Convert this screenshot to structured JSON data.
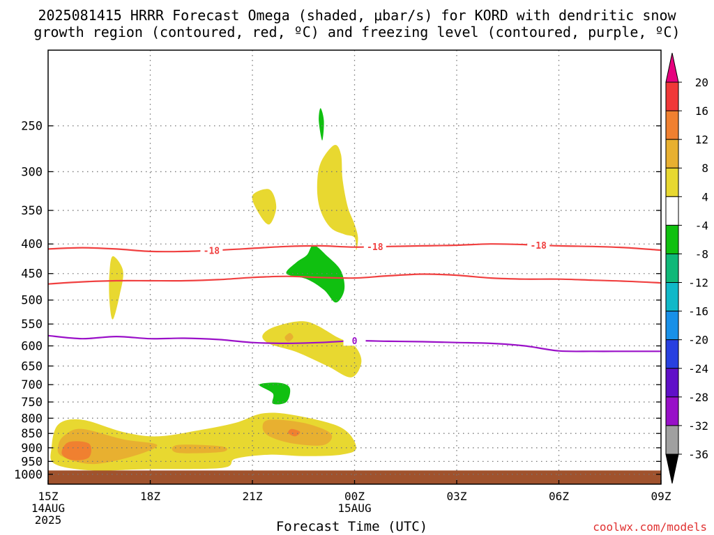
{
  "title": {
    "line1": "2025081415 HRRR Forecast Omega (shaded, μbar/s) for KORD with dendritic snow",
    "line2": "growth region (contoured, red, ºC) and freezing level (contoured, purple, ºC)"
  },
  "credit": "coolwx.com/models",
  "chart_data": {
    "type": "time-height cross section",
    "title": "2025081415 HRRR Forecast Omega (shaded, μbar/s) for KORD with dendritic snow growth region (contoured, red, ºC) and freezing level (contoured, purple, ºC)",
    "xlabel": "Forecast Time (UTC)",
    "ylabel": "",
    "x_ticks": [
      {
        "hour": 0,
        "label": "15Z",
        "sub1": "14AUG",
        "sub2": "2025"
      },
      {
        "hour": 3,
        "label": "18Z",
        "sub1": "",
        "sub2": ""
      },
      {
        "hour": 6,
        "label": "21Z",
        "sub1": "",
        "sub2": ""
      },
      {
        "hour": 9,
        "label": "00Z",
        "sub1": "15AUG",
        "sub2": ""
      },
      {
        "hour": 12,
        "label": "03Z",
        "sub1": "",
        "sub2": ""
      },
      {
        "hour": 15,
        "label": "06Z",
        "sub1": "",
        "sub2": ""
      },
      {
        "hour": 18,
        "label": "09Z",
        "sub1": "",
        "sub2": ""
      }
    ],
    "xlim_hours": [
      0,
      18
    ],
    "y_axis_scale": "log-pressure, inverted",
    "ylim_hPa": [
      1040,
      185
    ],
    "y_ticks": [
      250,
      300,
      350,
      400,
      450,
      500,
      550,
      600,
      650,
      700,
      750,
      800,
      850,
      900,
      950,
      1000
    ],
    "grid": true,
    "surface_pressure_hPa": 985,
    "colorbar": {
      "levels": [
        20,
        16,
        12,
        8,
        4,
        -4,
        -8,
        -12,
        -16,
        -20,
        -24,
        -28,
        -32,
        -36
      ],
      "colors": [
        "#e6007e",
        "#f03838",
        "#f08030",
        "#e8b030",
        "#e8d830",
        "#ffffff",
        "#10c010",
        "#10b878",
        "#10b8c8",
        "#1890e8",
        "#2840e0",
        "#6010c8",
        "#9810c8",
        "#a0a0a0",
        "#000000"
      ]
    },
    "contours": [
      {
        "name": "-18",
        "color": "#f04040",
        "label": "-18",
        "points": [
          [
            0,
            408
          ],
          [
            1,
            406
          ],
          [
            2,
            408
          ],
          [
            3,
            412
          ],
          [
            4,
            412
          ],
          [
            5,
            410
          ],
          [
            6,
            407
          ],
          [
            7,
            404
          ],
          [
            8,
            403
          ],
          [
            9,
            405
          ],
          [
            10,
            404
          ],
          [
            11,
            403
          ],
          [
            12,
            402
          ],
          [
            13,
            400
          ],
          [
            14,
            401
          ],
          [
            15,
            403
          ],
          [
            16,
            404
          ],
          [
            17,
            406
          ],
          [
            18,
            410
          ]
        ]
      },
      {
        "name": "-18",
        "color": "#f04040",
        "label": "",
        "points": [
          [
            0,
            469
          ],
          [
            1,
            465
          ],
          [
            2,
            463
          ],
          [
            3,
            463
          ],
          [
            4,
            463
          ],
          [
            5,
            461
          ],
          [
            6,
            457
          ],
          [
            7,
            455
          ],
          [
            8,
            457
          ],
          [
            9,
            458
          ],
          [
            10,
            454
          ],
          [
            11,
            451
          ],
          [
            12,
            453
          ],
          [
            13,
            458
          ],
          [
            14,
            460
          ],
          [
            15,
            460
          ],
          [
            16,
            462
          ],
          [
            17,
            464
          ],
          [
            18,
            467
          ]
        ]
      },
      {
        "name": "0",
        "color": "#9a10c8",
        "label": "0",
        "points": [
          [
            0,
            576
          ],
          [
            1,
            583
          ],
          [
            2,
            578
          ],
          [
            3,
            583
          ],
          [
            4,
            582
          ],
          [
            5,
            585
          ],
          [
            6,
            592
          ],
          [
            7,
            594
          ],
          [
            8,
            592
          ],
          [
            9,
            588
          ],
          [
            10,
            589
          ],
          [
            11,
            590
          ],
          [
            12,
            592
          ],
          [
            13,
            594
          ],
          [
            14,
            600
          ],
          [
            15,
            612
          ],
          [
            16,
            613
          ],
          [
            17,
            613
          ],
          [
            18,
            613
          ]
        ]
      }
    ],
    "omega_regions": [
      {
        "value": 4,
        "color": "#e8d830",
        "points": [
          [
            8.4,
            270
          ],
          [
            8.0,
            290
          ],
          [
            7.9,
            320
          ],
          [
            8.0,
            350
          ],
          [
            8.3,
            375
          ],
          [
            8.7,
            385
          ],
          [
            9.0,
            390
          ],
          [
            9.05,
            410
          ],
          [
            9.1,
            390
          ],
          [
            9.0,
            370
          ],
          [
            8.8,
            345
          ],
          [
            8.65,
            310
          ],
          [
            8.6,
            280
          ]
        ]
      },
      {
        "value": 4,
        "color": "#e8d830",
        "points": [
          [
            6.0,
            330
          ],
          [
            6.5,
            322
          ],
          [
            6.7,
            345
          ],
          [
            6.5,
            370
          ],
          [
            6.2,
            355
          ]
        ]
      },
      {
        "value": 4,
        "color": "#e8d830",
        "points": [
          [
            1.9,
            420
          ],
          [
            2.2,
            445
          ],
          [
            2.1,
            490
          ],
          [
            1.9,
            540
          ],
          [
            1.8,
            500
          ],
          [
            1.8,
            450
          ]
        ]
      },
      {
        "value": -4,
        "color": "#10c010",
        "points": [
          [
            7.8,
            402
          ],
          [
            8.2,
            420
          ],
          [
            8.6,
            445
          ],
          [
            8.7,
            480
          ],
          [
            8.45,
            505
          ],
          [
            8.1,
            480
          ],
          [
            7.6,
            460
          ],
          [
            7.0,
            450
          ],
          [
            7.3,
            430
          ],
          [
            7.6,
            418
          ]
        ]
      },
      {
        "value": -4,
        "color": "#10c010",
        "points": [
          [
            8.0,
            233
          ],
          [
            8.1,
            245
          ],
          [
            8.05,
            265
          ],
          [
            7.95,
            245
          ]
        ]
      },
      {
        "value": 4,
        "color": "#e8d830",
        "points": [
          [
            7.6,
            545
          ],
          [
            8.5,
            580
          ],
          [
            9.0,
            600
          ],
          [
            9.2,
            640
          ],
          [
            8.9,
            680
          ],
          [
            8.2,
            650
          ],
          [
            7.3,
            615
          ],
          [
            6.5,
            595
          ],
          [
            6.3,
            575
          ],
          [
            6.7,
            555
          ]
        ]
      },
      {
        "value": 8,
        "color": "#e8b030",
        "points": [
          [
            7.1,
            570
          ],
          [
            7.2,
            580
          ],
          [
            7.05,
            590
          ],
          [
            6.95,
            580
          ]
        ]
      },
      {
        "value": -4,
        "color": "#10c010",
        "points": [
          [
            6.2,
            700
          ],
          [
            6.8,
            695
          ],
          [
            7.1,
            710
          ],
          [
            7.0,
            750
          ],
          [
            6.6,
            755
          ],
          [
            6.6,
            725
          ]
        ]
      },
      {
        "value": 4,
        "color": "#e8d830",
        "points": [
          [
            0.3,
            820
          ],
          [
            1.0,
            805
          ],
          [
            2.2,
            845
          ],
          [
            3.2,
            860
          ],
          [
            4.4,
            840
          ],
          [
            5.5,
            815
          ],
          [
            6.3,
            785
          ],
          [
            7.2,
            790
          ],
          [
            8.6,
            830
          ],
          [
            9.05,
            900
          ],
          [
            8.6,
            925
          ],
          [
            7.5,
            930
          ],
          [
            6.5,
            925
          ],
          [
            5.5,
            940
          ],
          [
            5.1,
            975
          ],
          [
            2.8,
            980
          ],
          [
            1.3,
            985
          ],
          [
            0.2,
            960
          ],
          [
            0.1,
            900
          ]
        ]
      },
      {
        "value": 8,
        "color": "#e8b030",
        "points": [
          [
            0.5,
            855
          ],
          [
            1.0,
            835
          ],
          [
            2.2,
            870
          ],
          [
            3.2,
            890
          ],
          [
            2.5,
            930
          ],
          [
            1.3,
            960
          ],
          [
            0.4,
            930
          ],
          [
            0.3,
            890
          ]
        ]
      },
      {
        "value": 8,
        "color": "#e8b030",
        "points": [
          [
            6.5,
            805
          ],
          [
            7.5,
            815
          ],
          [
            8.3,
            850
          ],
          [
            8.1,
            890
          ],
          [
            7.2,
            885
          ],
          [
            6.5,
            860
          ],
          [
            6.3,
            830
          ]
        ]
      },
      {
        "value": 8,
        "color": "#e8b030",
        "points": [
          [
            3.8,
            890
          ],
          [
            5.1,
            895
          ],
          [
            5.1,
            915
          ],
          [
            3.8,
            918
          ]
        ]
      },
      {
        "value": 12,
        "color": "#f08030",
        "points": [
          [
            0.6,
            880
          ],
          [
            1.2,
            885
          ],
          [
            1.2,
            935
          ],
          [
            0.7,
            945
          ],
          [
            0.4,
            920
          ]
        ]
      },
      {
        "value": 12,
        "color": "#f08030",
        "points": [
          [
            7.15,
            835
          ],
          [
            7.4,
            845
          ],
          [
            7.25,
            860
          ],
          [
            7.05,
            848
          ]
        ]
      }
    ],
    "legend": "colorbar right"
  }
}
